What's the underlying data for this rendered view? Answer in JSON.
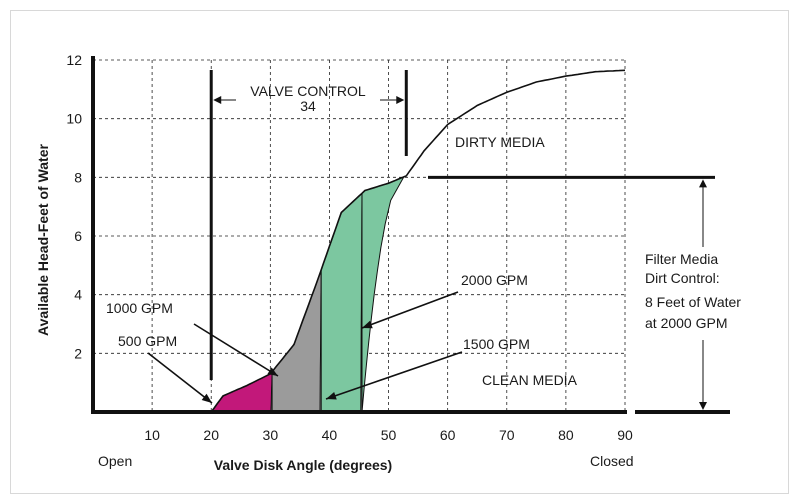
{
  "chart_data": {
    "type": "area",
    "xlabel": "Valve Disk Angle (degrees)",
    "ylabel": "Available Head-Feet of Water",
    "xlim": [
      0,
      90
    ],
    "ylim": [
      0,
      12
    ],
    "x_ticks": [
      "10",
      "20",
      "30",
      "40",
      "50",
      "60",
      "70",
      "80",
      "90"
    ],
    "y_ticks": [
      "2",
      "4",
      "6",
      "8",
      "10",
      "12"
    ],
    "x_end_labels": {
      "left": "Open",
      "right": "Closed"
    },
    "grid": true,
    "curve": {
      "x": [
        20,
        22,
        26,
        30,
        34,
        38,
        42,
        46,
        50,
        53,
        56,
        60,
        65,
        70,
        75,
        80,
        85,
        90
      ],
      "y": [
        0,
        0.55,
        0.9,
        1.3,
        2.3,
        4.5,
        6.8,
        7.55,
        7.8,
        8.05,
        8.9,
        9.8,
        10.45,
        10.9,
        11.25,
        11.45,
        11.6,
        11.65
      ]
    },
    "regions": [
      {
        "name": "500 GPM",
        "color": "#c2187a",
        "x_start": 20,
        "x_end": 30.3
      },
      {
        "name": "1000 GPM",
        "color": "#9b9b9b",
        "x_start": 30.3,
        "x_end": 38.6
      },
      {
        "name": "1500 GPM",
        "color": "#7cc7a0",
        "x_start": 38.6,
        "x_end": 45.5
      },
      {
        "name": "2000 GPM",
        "color": "#7cc7a0",
        "x_start": 45.5,
        "x_end": 52.6
      }
    ],
    "annotations": {
      "valve_control": {
        "line1": "VALVE CONTROL",
        "line2": "34",
        "x_from": 20,
        "x_to": 53
      },
      "dirty_media": "DIRTY MEDIA",
      "clean_media": "CLEAN MEDIA",
      "gpm_2000": "2000 GPM",
      "gpm_1500": "1500 GPM",
      "gpm_1000": "1000 GPM",
      "gpm_500": "500 GPM",
      "filter_note": [
        "Filter Media",
        "Dirt Control:",
        "8 Feet of Water",
        "at 2000 GPM"
      ],
      "filter_range": [
        0,
        8
      ]
    },
    "colors": {
      "magenta": "#c2187a",
      "gray": "#9b9b9b",
      "green": "#7cc7a0",
      "ink": "#111111"
    }
  }
}
